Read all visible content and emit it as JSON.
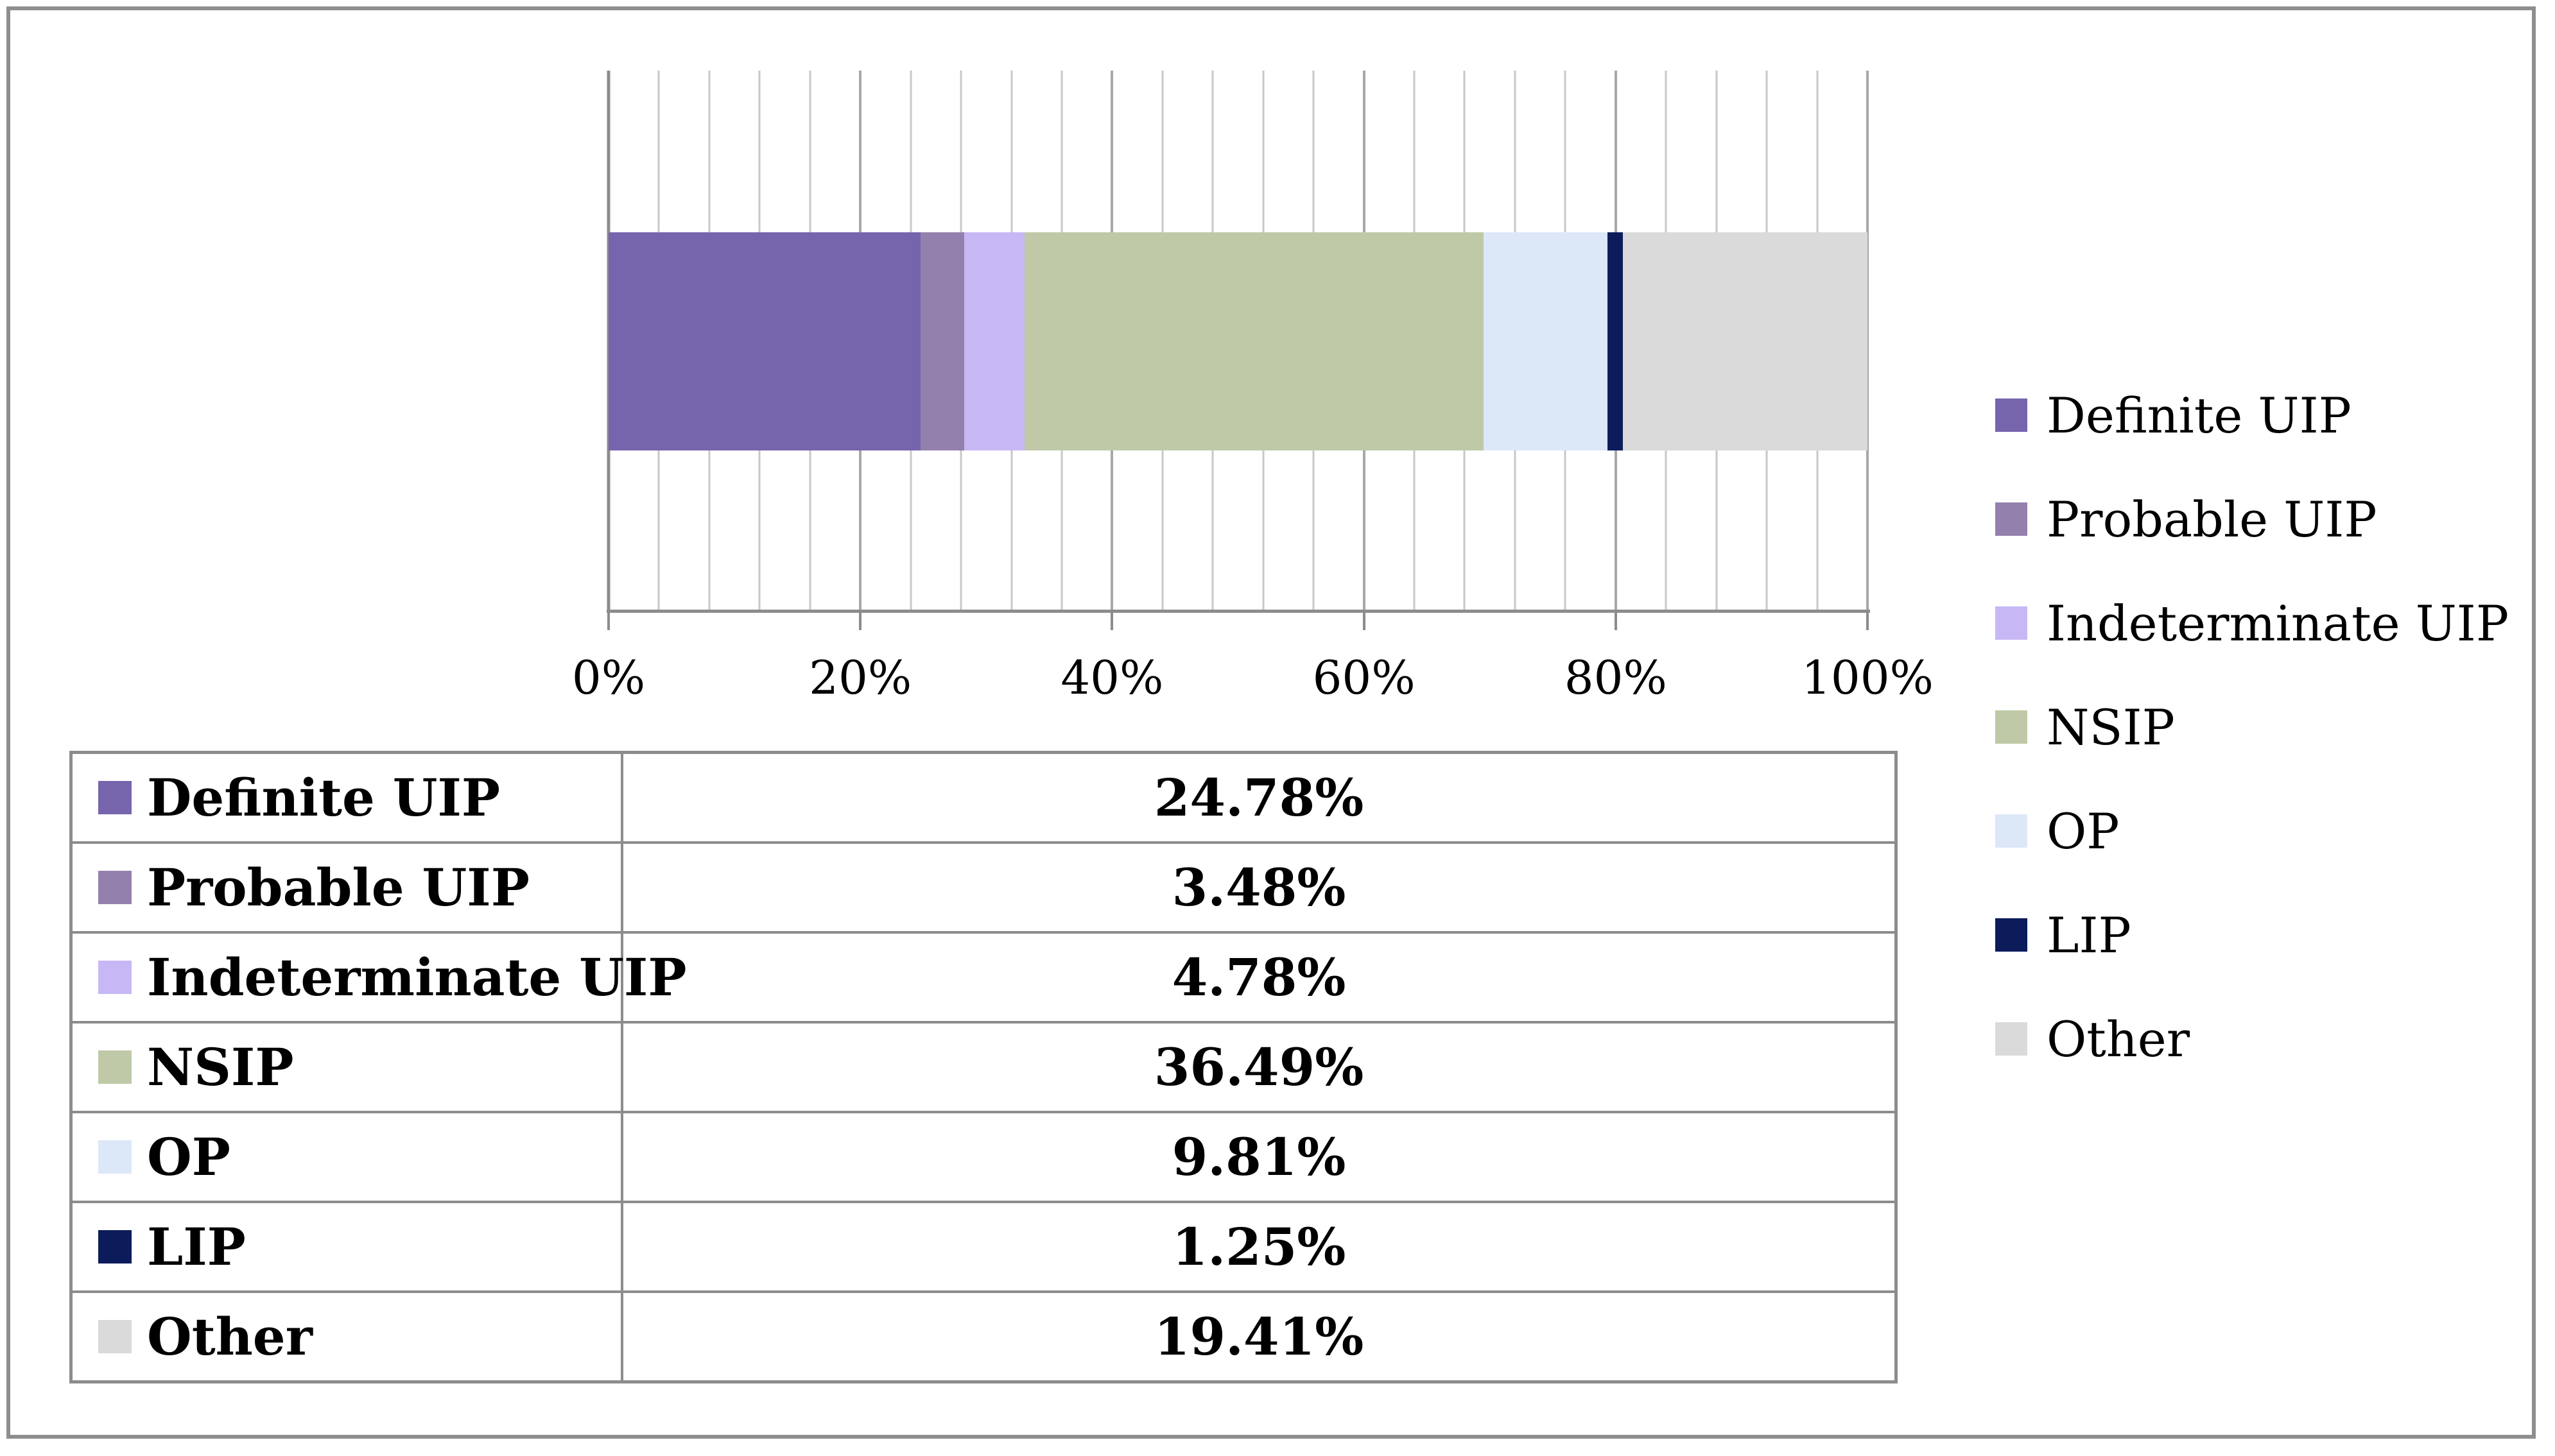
{
  "frame": {
    "border_color": "#8E8E8E",
    "background": "#FFFFFF"
  },
  "chart_data": {
    "type": "bar",
    "orientation": "horizontal",
    "stacked": true,
    "title": "",
    "units": "percent",
    "series": [
      {
        "name": "Definite UIP",
        "value": 24.78,
        "value_label": "24.78%",
        "color": "#7665AD"
      },
      {
        "name": "Probable UIP",
        "value": 3.48,
        "value_label": "3.48%",
        "color": "#9480AC"
      },
      {
        "name": "Indeterminate UIP",
        "value": 4.78,
        "value_label": "4.78%",
        "color": "#C7B8F5"
      },
      {
        "name": "NSIP",
        "value": 36.49,
        "value_label": "36.49%",
        "color": "#BFC9A8"
      },
      {
        "name": "OP",
        "value": 9.81,
        "value_label": "9.81%",
        "color": "#DCE8F8"
      },
      {
        "name": "LIP",
        "value": 1.25,
        "value_label": "1.25%",
        "color": "#0C1C5B"
      },
      {
        "name": "Other",
        "value": 19.41,
        "value_label": "19.41%",
        "color": "#DADADA"
      }
    ],
    "xlim": [
      0,
      100
    ],
    "x_ticks": [
      {
        "value": 0,
        "label": "0%"
      },
      {
        "value": 20,
        "label": "20%"
      },
      {
        "value": 40,
        "label": "40%"
      },
      {
        "value": 60,
        "label": "60%"
      },
      {
        "value": 80,
        "label": "80%"
      },
      {
        "value": 100,
        "label": "100%"
      }
    ],
    "grid": {
      "show": true,
      "minor_step_pct": 4,
      "major_step_pct": 20,
      "minor_color": "#C8C8C8",
      "major_color": "#A8A8A8",
      "zero_line_color": "#8C8C8C",
      "axis_line_color": "#8C8C8C"
    },
    "legend_position": "right",
    "table_border_color": "#8C8C8C"
  }
}
